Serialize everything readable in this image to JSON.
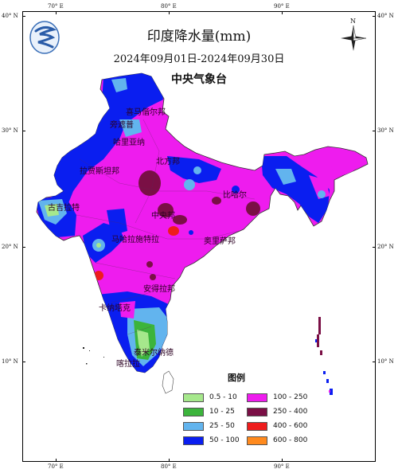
{
  "map": {
    "title": "印度降水量(mm)",
    "period": "2024年09月01日-2024年09月30日",
    "agency": "中央气象台",
    "north_label": "N",
    "top_ticks": [
      "70° E",
      "80° E",
      "90° E"
    ],
    "bottom_ticks": [
      "70° E",
      "80° E",
      "90° E"
    ],
    "left_ticks": [
      "40° N",
      "30° N",
      "20° N",
      "10° N"
    ],
    "right_ticks": [
      "40° N",
      "30° N",
      "20° N",
      "10° N"
    ],
    "region_labels": {
      "himachal": "喜马偕尔邦",
      "punjab": "旁遮普",
      "haryana": "哈里亚纳",
      "rajasthan": "拉贾斯坦邦",
      "uttar": "北方邦",
      "bihar": "比哈尔",
      "gujarat": "古吉拉特",
      "madhya": "中央邦",
      "maharashtra": "马哈拉施特拉",
      "odisha": "奥里萨邦",
      "andhra": "安得拉邦",
      "karnataka": "卡纳塔克",
      "tamil": "泰米尔纳德",
      "kerala": "喀拉拉"
    }
  },
  "legend": {
    "title": "图例",
    "items": [
      {
        "label": "0.5 - 10",
        "color": "#a6e88c"
      },
      {
        "label": "100 - 250",
        "color": "#ee1cee"
      },
      {
        "label": "10 - 25",
        "color": "#3cb43c"
      },
      {
        "label": "250 - 400",
        "color": "#7a0f45"
      },
      {
        "label": "25 - 50",
        "color": "#62b4ee"
      },
      {
        "label": "400 - 600",
        "color": "#ee1c1c"
      },
      {
        "label": "50 - 100",
        "color": "#0a1ef0"
      },
      {
        "label": "600 - 800",
        "color": "#ff8a1e"
      }
    ]
  }
}
